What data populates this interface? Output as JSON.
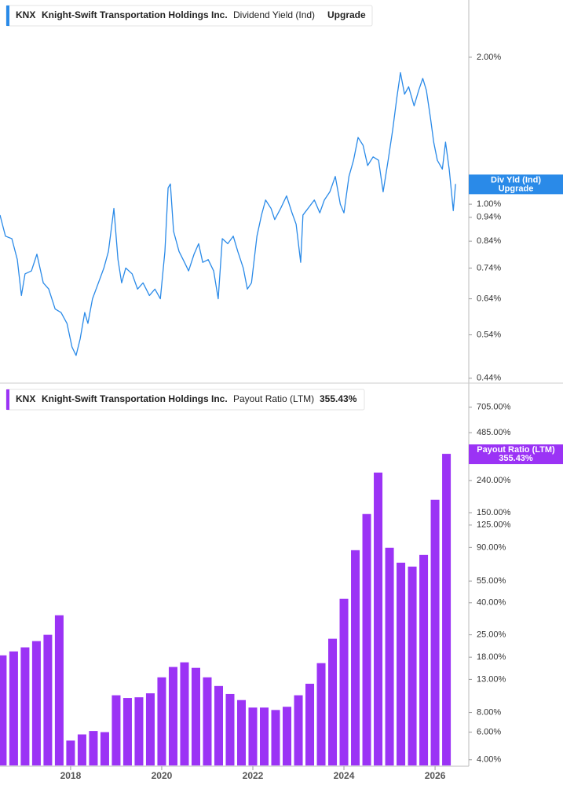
{
  "chart_data": [
    {
      "type": "line",
      "ticker": "KNX",
      "company": "Knight-Swift Transportation Holdings Inc.",
      "title": "Dividend Yield (Ind)",
      "badge": "Upgrade",
      "tag": "Div Yld (Ind)",
      "color": "#2a8ae8",
      "log_scale": true,
      "ylim": [
        0.43,
        2.62
      ],
      "xlim": [
        2016.45,
        2026.74
      ],
      "yticks": [
        {
          "value": 2.0,
          "label": "2.00%"
        },
        {
          "value": 1.0,
          "label": "1.00%"
        },
        {
          "value": 0.94,
          "label": "0.94%"
        },
        {
          "value": 0.84,
          "label": "0.84%"
        },
        {
          "value": 0.74,
          "label": "0.74%"
        },
        {
          "value": 0.64,
          "label": "0.64%"
        },
        {
          "value": 0.54,
          "label": "0.54%"
        },
        {
          "value": 0.44,
          "label": "0.44%"
        }
      ],
      "x": [
        2016.45,
        2016.57,
        2016.71,
        2016.83,
        2016.92,
        2017.0,
        2017.14,
        2017.26,
        2017.4,
        2017.52,
        2017.66,
        2017.79,
        2017.92,
        2018.03,
        2018.12,
        2018.21,
        2018.31,
        2018.38,
        2018.48,
        2018.61,
        2018.73,
        2018.83,
        2018.95,
        2019.04,
        2019.12,
        2019.21,
        2019.35,
        2019.47,
        2019.59,
        2019.73,
        2019.85,
        2019.97,
        2020.07,
        2020.14,
        2020.19,
        2020.26,
        2020.38,
        2020.5,
        2020.59,
        2020.71,
        2020.81,
        2020.9,
        2021.02,
        2021.14,
        2021.24,
        2021.33,
        2021.45,
        2021.57,
        2021.67,
        2021.79,
        2021.88,
        2021.97,
        2022.09,
        2022.19,
        2022.28,
        2022.4,
        2022.48,
        2022.61,
        2022.74,
        2022.86,
        2022.95,
        2023.05,
        2023.1,
        2023.21,
        2023.35,
        2023.47,
        2023.57,
        2023.69,
        2023.81,
        2023.92,
        2024.0,
        2024.11,
        2024.21,
        2024.31,
        2024.42,
        2024.52,
        2024.64,
        2024.76,
        2024.86,
        2024.97,
        2025.07,
        2025.16,
        2025.24,
        2025.33,
        2025.42,
        2025.54,
        2025.64,
        2025.73,
        2025.81,
        2025.9,
        2025.97,
        2026.05,
        2026.16,
        2026.23,
        2026.31,
        2026.36,
        2026.4,
        2026.45
      ],
      "values": [
        0.95,
        0.86,
        0.85,
        0.77,
        0.65,
        0.72,
        0.73,
        0.79,
        0.69,
        0.67,
        0.61,
        0.6,
        0.57,
        0.51,
        0.49,
        0.53,
        0.6,
        0.57,
        0.64,
        0.69,
        0.74,
        0.8,
        0.98,
        0.77,
        0.69,
        0.74,
        0.72,
        0.67,
        0.69,
        0.65,
        0.67,
        0.64,
        0.8,
        1.08,
        1.1,
        0.88,
        0.8,
        0.76,
        0.73,
        0.79,
        0.83,
        0.76,
        0.77,
        0.73,
        0.64,
        0.85,
        0.83,
        0.86,
        0.8,
        0.74,
        0.67,
        0.69,
        0.86,
        0.95,
        1.02,
        0.98,
        0.93,
        0.98,
        1.04,
        0.96,
        0.91,
        0.76,
        0.95,
        0.98,
        1.02,
        0.96,
        1.02,
        1.06,
        1.14,
        1.0,
        0.96,
        1.14,
        1.23,
        1.37,
        1.32,
        1.2,
        1.25,
        1.23,
        1.06,
        1.23,
        1.42,
        1.65,
        1.86,
        1.68,
        1.74,
        1.59,
        1.71,
        1.81,
        1.71,
        1.5,
        1.34,
        1.23,
        1.18,
        1.34,
        1.18,
        1.06,
        0.97,
        1.1
      ]
    },
    {
      "type": "bar",
      "ticker": "KNX",
      "company": "Knight-Swift Transportation Holdings Inc.",
      "title": "Payout Ratio (LTM)",
      "latest_label": "355.43%",
      "color": "#9b33f5",
      "log_scale": true,
      "ylim": [
        3.68,
        980
      ],
      "xlim": [
        2016.45,
        2026.74
      ],
      "bar_width": 0.19,
      "yticks": [
        {
          "value": 705,
          "label": "705.00%"
        },
        {
          "value": 485,
          "label": "485.00%"
        },
        {
          "value": 240,
          "label": "240.00%"
        },
        {
          "value": 150,
          "label": "150.00%"
        },
        {
          "value": 125,
          "label": "125.00%"
        },
        {
          "value": 90,
          "label": "90.00%"
        },
        {
          "value": 55,
          "label": "55.00%"
        },
        {
          "value": 40,
          "label": "40.00%"
        },
        {
          "value": 25,
          "label": "25.00%"
        },
        {
          "value": 18,
          "label": "18.00%"
        },
        {
          "value": 13,
          "label": "13.00%"
        },
        {
          "value": 8,
          "label": "8.00%"
        },
        {
          "value": 6,
          "label": "6.00%"
        },
        {
          "value": 4,
          "label": "4.00%"
        }
      ],
      "xticks": [
        2018,
        2020,
        2022,
        2024,
        2026
      ],
      "x": [
        2016.5,
        2016.75,
        2017.0,
        2017.25,
        2017.5,
        2017.75,
        2018.0,
        2018.25,
        2018.5,
        2018.75,
        2019.0,
        2019.25,
        2019.5,
        2019.75,
        2020.0,
        2020.25,
        2020.5,
        2020.75,
        2021.0,
        2021.25,
        2021.5,
        2021.75,
        2022.0,
        2022.25,
        2022.5,
        2022.75,
        2023.0,
        2023.25,
        2023.5,
        2023.75,
        2024.0,
        2024.25,
        2024.5,
        2024.75,
        2025.0,
        2025.25,
        2025.5,
        2025.75,
        2026.0,
        2026.25
      ],
      "values": [
        18.5,
        19.6,
        20.8,
        22.8,
        25.0,
        33.3,
        5.3,
        5.8,
        6.1,
        6.0,
        10.3,
        9.9,
        10.0,
        10.6,
        13.4,
        15.6,
        16.7,
        15.4,
        13.4,
        11.8,
        10.5,
        9.6,
        8.6,
        8.6,
        8.3,
        8.7,
        10.3,
        12.2,
        16.5,
        23.6,
        42.4,
        86.5,
        147,
        270,
        89.6,
        72,
        68,
        80.7,
        181,
        355.43
      ]
    }
  ]
}
